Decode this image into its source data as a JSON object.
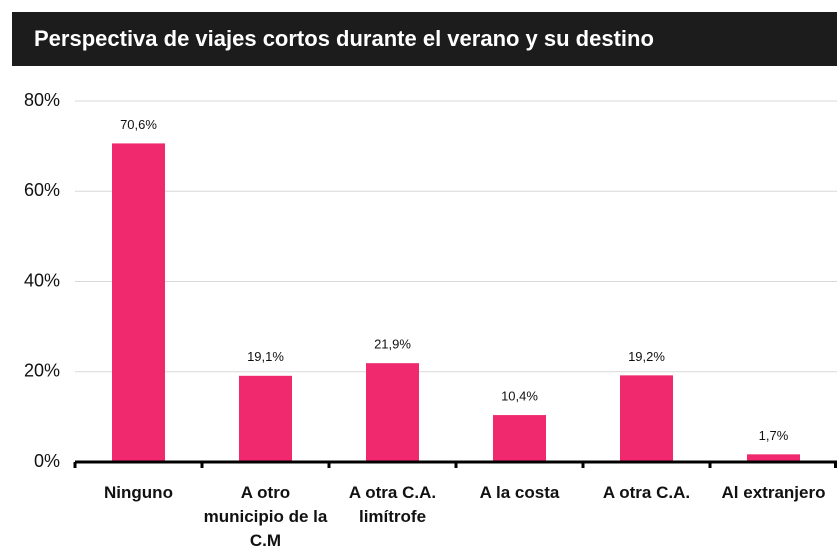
{
  "chart_data": {
    "type": "bar",
    "title": "Perspectiva de viajes cortos durante el verano y su destino",
    "categories": [
      "Ninguno",
      "A otro municipio de la C.M",
      "A otra C.A. limítrofe",
      "A la costa",
      "A otra C.A.",
      "Al extranjero"
    ],
    "values": [
      70.6,
      19.1,
      21.9,
      10.4,
      19.2,
      1.7
    ],
    "value_labels": [
      "70,6%",
      "19,1%",
      "21,9%",
      "10,4%",
      "19,2%",
      "1,7%"
    ],
    "color": "#f0296e",
    "ylim": [
      0,
      80
    ],
    "yticks": [
      {
        "value": 0,
        "label": "0%"
      },
      {
        "value": 20,
        "label": "20%"
      },
      {
        "value": 40,
        "label": "40%"
      },
      {
        "value": 60,
        "label": "60%"
      },
      {
        "value": 80,
        "label": "80%"
      }
    ],
    "grid": true
  }
}
